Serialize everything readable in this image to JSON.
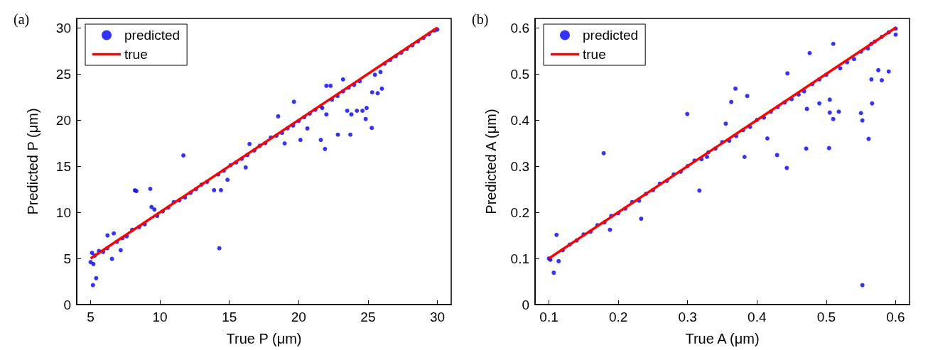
{
  "chart_data": [
    {
      "type": "scatter",
      "title": "(a)",
      "xlabel": "True P (μm)",
      "ylabel": "Predicted P (μm)",
      "xlim": [
        4,
        31
      ],
      "ylim": [
        0,
        31
      ],
      "xticks": [
        5,
        10,
        15,
        20,
        25,
        30
      ],
      "yticks": [
        0,
        5,
        10,
        15,
        20,
        25,
        30
      ],
      "grid": false,
      "legend": "top left",
      "series": [
        {
          "name": "predicted",
          "marker": "circle",
          "color": "#0000ff",
          "x": [
            5.0,
            5.1,
            5.2,
            5.17,
            5.4,
            5.3,
            5.6,
            5.9,
            6.2,
            6.22,
            6.67,
            6.54,
            7.17,
            6.9,
            7.3,
            7.6,
            8.0,
            8.19,
            8.3,
            8.5,
            8.9,
            9.3,
            9.39,
            9.6,
            9.8,
            10.2,
            10.6,
            11.0,
            11.4,
            11.69,
            11.8,
            12.2,
            12.6,
            13.0,
            13.4,
            13.9,
            14.4,
            14.28,
            14.2,
            14.6,
            14.87,
            15.1,
            15.5,
            15.9,
            16.18,
            16.46,
            16.3,
            16.8,
            17.2,
            17.6,
            18.0,
            18.52,
            18.4,
            18.99,
            18.8,
            19.2,
            19.66,
            19.6,
            20.13,
            20.0,
            20.4,
            20.63,
            20.8,
            21.2,
            21.6,
            21.9,
            21.6,
            21.7,
            22.0,
            22.0,
            22.3,
            22.4,
            22.83,
            22.8,
            23.2,
            23.2,
            23.5,
            23.73,
            23.6,
            23.8,
            24.0,
            24.2,
            24.4,
            24.6,
            24.83,
            24.9,
            25.27,
            25.3,
            25.5,
            25.7,
            25.9,
            26.0,
            26.2,
            26.6,
            27.0,
            27.4,
            27.8,
            28.2,
            28.6,
            29.0,
            29.4,
            29.8,
            30.0
          ],
          "values": [
            4.6,
            5.6,
            4.4,
            2.1,
            2.86,
            5.3,
            5.8,
            5.7,
            6.1,
            7.49,
            7.71,
            4.95,
            5.9,
            6.8,
            7.2,
            7.4,
            8.1,
            12.38,
            12.3,
            8.4,
            8.7,
            12.54,
            10.57,
            10.3,
            9.6,
            10.1,
            10.5,
            11.1,
            11.3,
            16.16,
            11.6,
            12.1,
            12.5,
            13.0,
            13.3,
            12.4,
            12.4,
            6.1,
            14.1,
            14.5,
            13.52,
            15.1,
            15.4,
            15.8,
            14.86,
            17.4,
            16.2,
            16.7,
            17.2,
            17.5,
            18.1,
            20.4,
            18.3,
            17.46,
            18.6,
            19.1,
            21.97,
            19.4,
            17.84,
            19.9,
            20.3,
            19.08,
            20.7,
            21.1,
            17.84,
            16.86,
            21.5,
            21.3,
            23.7,
            20.6,
            23.7,
            22.2,
            18.41,
            22.6,
            24.4,
            23.1,
            21.0,
            18.41,
            23.5,
            20.6,
            23.8,
            21.0,
            24.2,
            21.0,
            20.1,
            21.3,
            19.14,
            23.0,
            24.9,
            22.9,
            25.2,
            23.4,
            26.1,
            26.5,
            26.9,
            27.3,
            27.7,
            28.1,
            28.5,
            28.9,
            29.3,
            29.7,
            29.8
          ]
        },
        {
          "name": "true",
          "type": "line",
          "marker": "none",
          "color": "#ff0000",
          "x": [
            5,
            30
          ],
          "values": [
            5,
            30
          ]
        }
      ]
    },
    {
      "type": "scatter",
      "title": "(b)",
      "xlabel": "True A (μm)",
      "ylabel": "Predicted A (μm)",
      "xlim": [
        0.08,
        0.62
      ],
      "ylim": [
        0,
        0.62
      ],
      "xticks": [
        0.1,
        0.2,
        0.3,
        0.4,
        0.5,
        0.6
      ],
      "yticks": [
        0,
        0.1,
        0.2,
        0.3,
        0.4,
        0.5,
        0.6
      ],
      "grid": false,
      "legend": "top left",
      "series": [
        {
          "name": "predicted",
          "marker": "circle",
          "color": "#0000ff",
          "x": [
            0.1,
            0.102,
            0.107,
            0.111,
            0.114,
            0.12,
            0.13,
            0.14,
            0.15,
            0.16,
            0.17,
            0.179,
            0.18,
            0.188,
            0.19,
            0.2,
            0.21,
            0.22,
            0.233,
            0.23,
            0.24,
            0.25,
            0.26,
            0.27,
            0.28,
            0.29,
            0.2995,
            0.3,
            0.31,
            0.317,
            0.32,
            0.328,
            0.33,
            0.34,
            0.35,
            0.355,
            0.36,
            0.363,
            0.369,
            0.37,
            0.38,
            0.382,
            0.386,
            0.39,
            0.4,
            0.41,
            0.415,
            0.42,
            0.429,
            0.43,
            0.44,
            0.443,
            0.444,
            0.45,
            0.46,
            0.468,
            0.471,
            0.472,
            0.476,
            0.48,
            0.49,
            0.49,
            0.5,
            0.504,
            0.505,
            0.505,
            0.51,
            0.51,
            0.518,
            0.52,
            0.53,
            0.54,
            0.55,
            0.552,
            0.552,
            0.55,
            0.56,
            0.561,
            0.565,
            0.566,
            0.565,
            0.57,
            0.575,
            0.58,
            0.58,
            0.59,
            0.59,
            0.6,
            0.6
          ],
          "values": [
            0.1,
            0.097,
            0.069,
            0.151,
            0.094,
            0.118,
            0.13,
            0.139,
            0.152,
            0.158,
            0.172,
            0.328,
            0.178,
            0.162,
            0.192,
            0.198,
            0.208,
            0.222,
            0.186,
            0.225,
            0.24,
            0.248,
            0.262,
            0.268,
            0.282,
            0.288,
            0.413,
            0.3,
            0.312,
            0.247,
            0.315,
            0.32,
            0.33,
            0.338,
            0.352,
            0.392,
            0.355,
            0.439,
            0.468,
            0.365,
            0.378,
            0.32,
            0.452,
            0.385,
            0.4,
            0.405,
            0.36,
            0.418,
            0.324,
            0.428,
            0.438,
            0.296,
            0.501,
            0.445,
            0.455,
            0.462,
            0.338,
            0.424,
            0.545,
            0.478,
            0.436,
            0.488,
            0.498,
            0.339,
            0.416,
            0.444,
            0.402,
            0.565,
            0.418,
            0.512,
            0.525,
            0.532,
            0.415,
            0.042,
            0.399,
            0.548,
            0.555,
            0.359,
            0.488,
            0.436,
            0.565,
            0.57,
            0.508,
            0.486,
            0.58,
            0.505,
            0.59,
            0.598,
            0.585
          ]
        },
        {
          "name": "true",
          "type": "line",
          "marker": "none",
          "color": "#ff0000",
          "x": [
            0.1,
            0.6
          ],
          "values": [
            0.1,
            0.6
          ]
        }
      ]
    }
  ]
}
